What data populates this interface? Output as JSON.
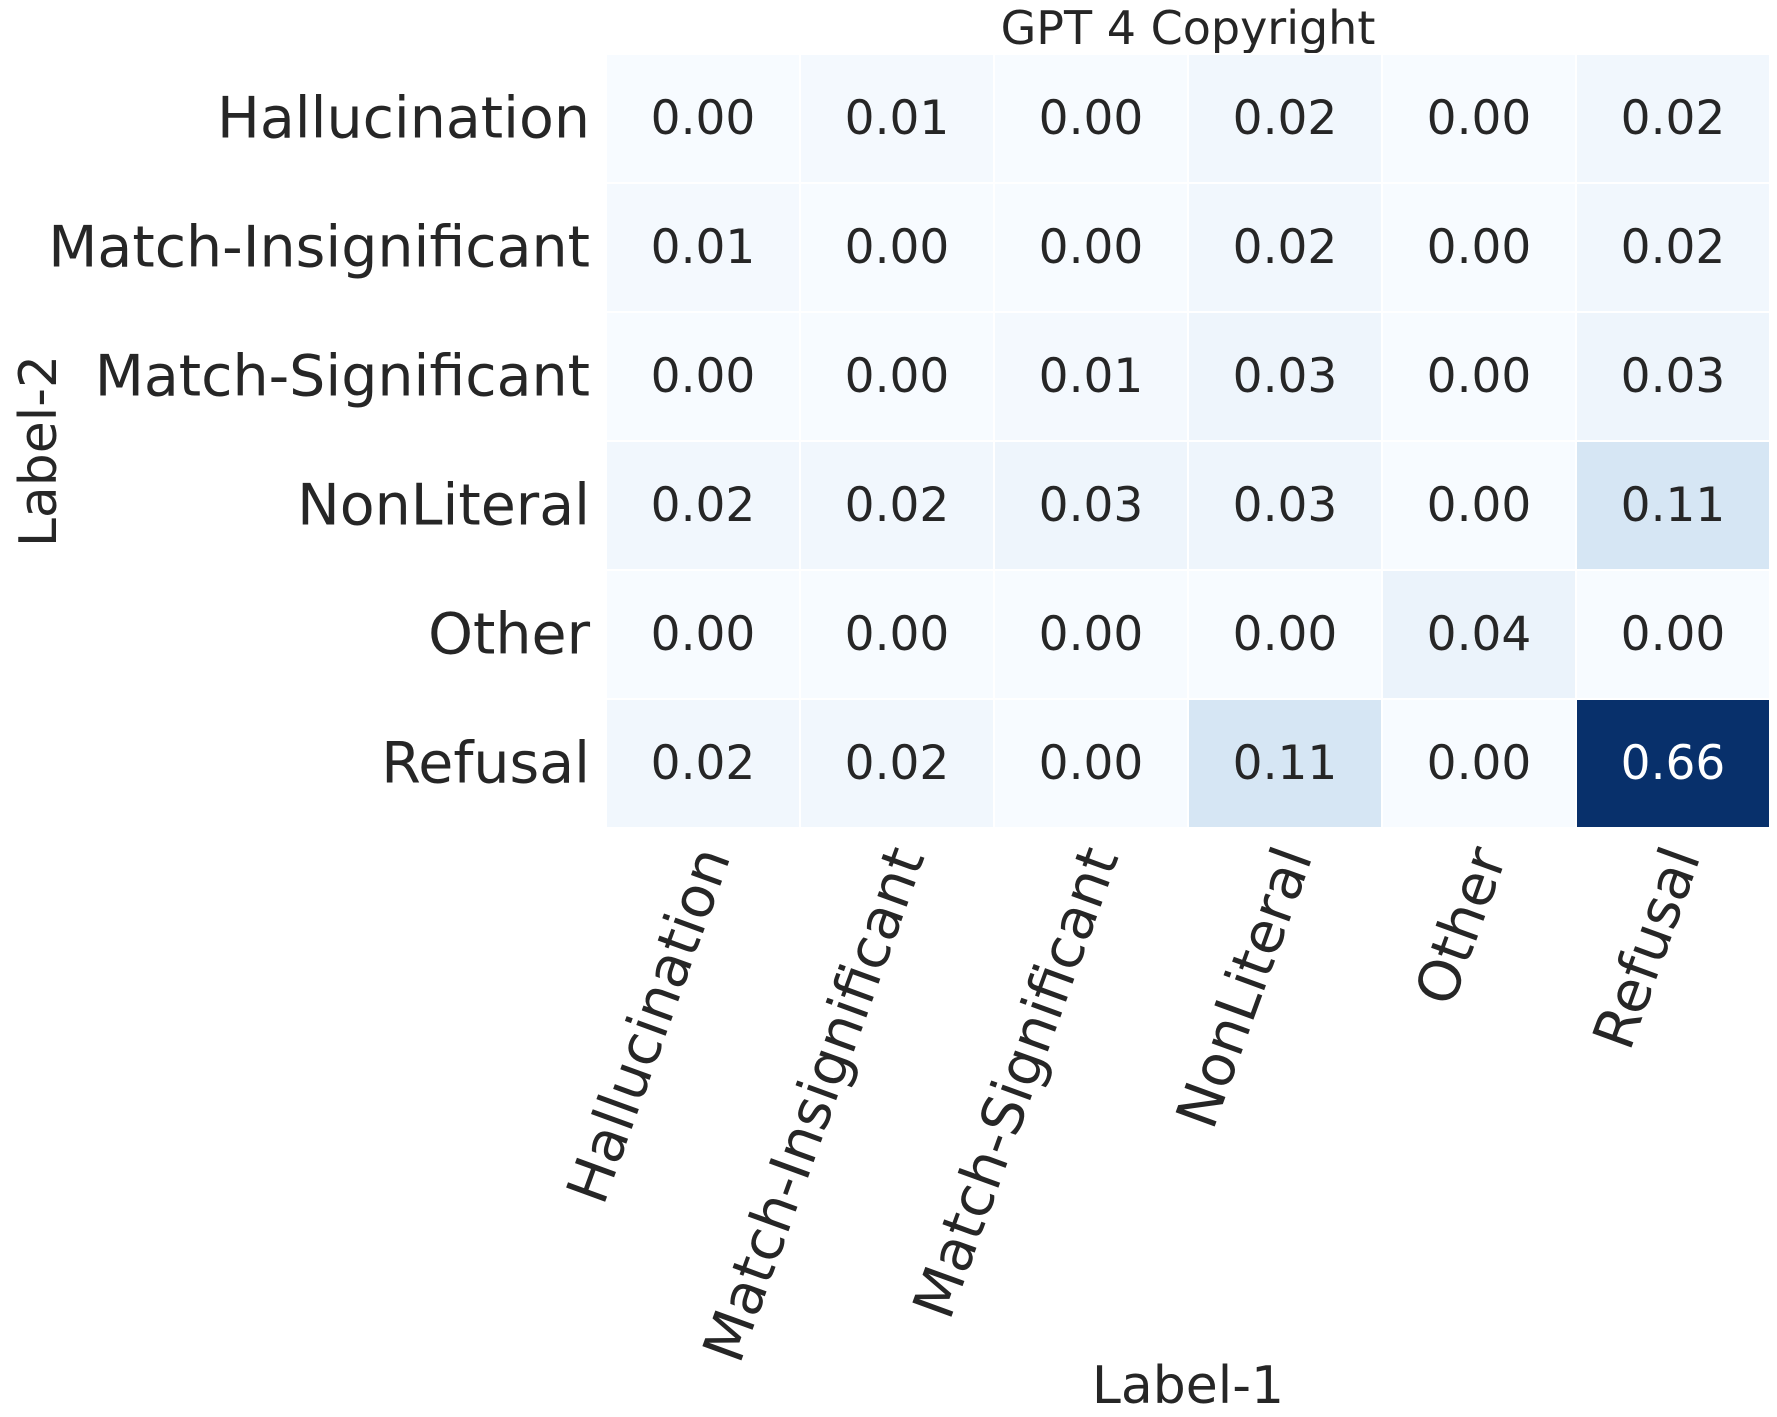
{
  "chart_data": {
    "type": "heatmap",
    "title": "GPT 4 Copyright",
    "xlabel": "Label-1",
    "ylabel": "Label-2",
    "x_categories": [
      "Hallucination",
      "Match-Insignificant",
      "Match-Significant",
      "NonLiteral",
      "Other",
      "Refusal"
    ],
    "y_categories": [
      "Hallucination",
      "Match-Insignificant",
      "Match-Significant",
      "NonLiteral",
      "Other",
      "Refusal"
    ],
    "values": [
      [
        0.0,
        0.01,
        0.0,
        0.02,
        0.0,
        0.02
      ],
      [
        0.01,
        0.0,
        0.0,
        0.02,
        0.0,
        0.02
      ],
      [
        0.0,
        0.0,
        0.01,
        0.03,
        0.0,
        0.03
      ],
      [
        0.02,
        0.02,
        0.03,
        0.03,
        0.0,
        0.11
      ],
      [
        0.0,
        0.0,
        0.0,
        0.0,
        0.04,
        0.0
      ],
      [
        0.02,
        0.02,
        0.0,
        0.11,
        0.0,
        0.66
      ]
    ],
    "value_labels": [
      [
        "0.00",
        "0.01",
        "0.00",
        "0.02",
        "0.00",
        "0.02"
      ],
      [
        "0.01",
        "0.00",
        "0.00",
        "0.02",
        "0.00",
        "0.02"
      ],
      [
        "0.00",
        "0.00",
        "0.01",
        "0.03",
        "0.00",
        "0.03"
      ],
      [
        "0.02",
        "0.02",
        "0.03",
        "0.03",
        "0.00",
        "0.11"
      ],
      [
        "0.00",
        "0.00",
        "0.00",
        "0.00",
        "0.04",
        "0.00"
      ],
      [
        "0.02",
        "0.02",
        "0.00",
        "0.11",
        "0.00",
        "0.66"
      ]
    ],
    "colormap": "Blues",
    "colorbar": false,
    "vmin": 0.0,
    "vmax": 0.66,
    "x_tick_rotation_deg": 70,
    "colors": {
      "text_dark": "#262626",
      "text_light": "#ffffff",
      "cell_border": "#ffffff"
    }
  }
}
